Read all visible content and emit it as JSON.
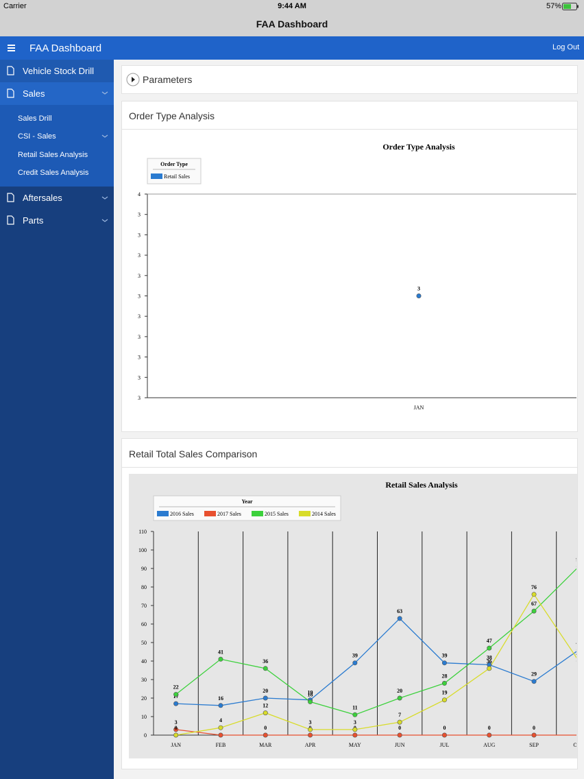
{
  "status_bar": {
    "carrier": "Carrier",
    "time": "9:44 AM",
    "battery": "57%"
  },
  "title_bar": {
    "title": "FAA Dashboard"
  },
  "header": {
    "title": "FAA Dashboard",
    "logout": "Log Out"
  },
  "sidebar": {
    "items": [
      {
        "label": "Vehicle Stock Drill"
      },
      {
        "label": "Sales",
        "children": [
          "Sales Drill",
          "CSI - Sales",
          "Retail Sales Analysis",
          "Credit Sales Analysis"
        ]
      },
      {
        "label": "Aftersales"
      },
      {
        "label": "Parts"
      }
    ]
  },
  "parameters": {
    "label": "Parameters"
  },
  "panels": [
    {
      "title": "Order Type Analysis",
      "chart_data": {
        "type": "line",
        "title": "Order Type Analysis",
        "legend_title": "Order Type",
        "categories": [
          "JAN"
        ],
        "series": [
          {
            "name": "Retail Sales",
            "color": "#2a7bd0",
            "values": [
              3
            ]
          }
        ],
        "ylim": [
          2.5,
          3.5
        ],
        "yticks": [
          {
            "value": 2.5,
            "label": "3"
          },
          {
            "value": 2.6,
            "label": "3"
          },
          {
            "value": 2.7,
            "label": "3"
          },
          {
            "value": 2.8,
            "label": "3"
          },
          {
            "value": 2.9,
            "label": "3"
          },
          {
            "value": 3.0,
            "label": "3"
          },
          {
            "value": 3.1,
            "label": "3"
          },
          {
            "value": 3.2,
            "label": "3"
          },
          {
            "value": 3.3,
            "label": "3"
          },
          {
            "value": 3.4,
            "label": "3"
          },
          {
            "value": 3.5,
            "label": "4"
          }
        ],
        "grid": false
      }
    },
    {
      "title": "Retail Total Sales Comparison",
      "chart_data": {
        "type": "line",
        "title": "Retail Sales Analysis",
        "legend_title": "Year",
        "categories": [
          "JAN",
          "FEB",
          "MAR",
          "APR",
          "MAY",
          "JUN",
          "JUL",
          "AUG",
          "SEP",
          "OCT"
        ],
        "series": [
          {
            "name": "2016 Sales",
            "color": "#2a7bd0",
            "values": [
              17,
              16,
              20,
              19,
              39,
              63,
              39,
              38,
              29,
              46
            ]
          },
          {
            "name": "2017 Sales",
            "color": "#e8502f",
            "values": [
              3,
              0,
              0,
              0,
              0,
              0,
              0,
              0,
              0,
              0
            ]
          },
          {
            "name": "2015 Sales",
            "color": "#3cd13c",
            "values": [
              22,
              41,
              36,
              18,
              11,
              20,
              28,
              47,
              67,
              91
            ]
          },
          {
            "name": "2014 Sales",
            "color": "#d8dc2a",
            "values": [
              0,
              4,
              12,
              3,
              3,
              7,
              19,
              36,
              76,
              40
            ]
          }
        ],
        "ylim": [
          0,
          110
        ],
        "yticks": [
          0,
          10,
          20,
          30,
          40,
          50,
          60,
          70,
          80,
          90,
          100,
          110
        ],
        "grid": true
      }
    }
  ]
}
